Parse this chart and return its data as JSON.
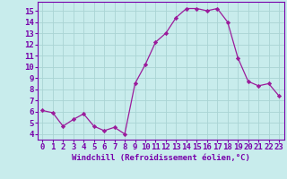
{
  "x": [
    0,
    1,
    2,
    3,
    4,
    5,
    6,
    7,
    8,
    9,
    10,
    11,
    12,
    13,
    14,
    15,
    16,
    17,
    18,
    19,
    20,
    21,
    22,
    23
  ],
  "y": [
    6.1,
    5.9,
    4.7,
    5.3,
    5.8,
    4.7,
    4.3,
    4.6,
    4.0,
    8.5,
    10.2,
    12.2,
    13.0,
    14.4,
    15.2,
    15.2,
    15.0,
    15.2,
    14.0,
    10.8,
    8.7,
    8.3,
    8.5,
    7.4
  ],
  "line_color": "#9b1b9b",
  "marker": "D",
  "marker_size": 2.2,
  "xlabel": "Windchill (Refroidissement éolien,°C)",
  "xlim": [
    -0.5,
    23.5
  ],
  "ylim": [
    3.5,
    15.8
  ],
  "yticks": [
    4,
    5,
    6,
    7,
    8,
    9,
    10,
    11,
    12,
    13,
    14,
    15
  ],
  "xticks": [
    0,
    1,
    2,
    3,
    4,
    5,
    6,
    7,
    8,
    9,
    10,
    11,
    12,
    13,
    14,
    15,
    16,
    17,
    18,
    19,
    20,
    21,
    22,
    23
  ],
  "bg_color": "#c8ecec",
  "grid_color": "#aad4d4",
  "line_border_color": "#7700aa",
  "tick_label_color": "#7700aa",
  "xlabel_color": "#7700aa",
  "xlabel_fontsize": 6.5,
  "tick_fontsize": 6.5
}
